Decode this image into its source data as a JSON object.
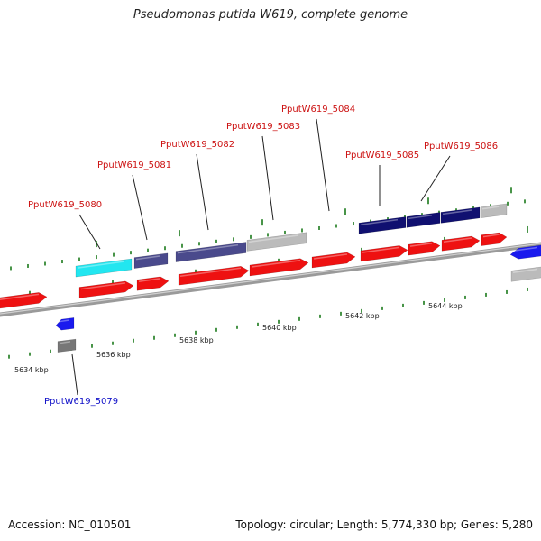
{
  "title": "Pseudomonas putida W619, complete genome",
  "accession": "Accession: NC_010501",
  "topology": "Topology: circular; Length: 5,774,330 bp; Genes: 5,280",
  "tick_labels": [
    "5634 kbp",
    "5636 kbp",
    "5638 kbp",
    "5640 kbp",
    "5642 kbp",
    "5644 kbp"
  ],
  "gene_labels": [
    {
      "text": "PputW619_5079",
      "color": "#1010c8"
    },
    {
      "text": "PputW619_5080",
      "color": "#cc1111"
    },
    {
      "text": "PputW619_5081",
      "color": "#cc1111"
    },
    {
      "text": "PputW619_5082",
      "color": "#cc1111"
    },
    {
      "text": "PputW619_5083",
      "color": "#cc1111"
    },
    {
      "text": "PputW619_5084",
      "color": "#cc1111"
    },
    {
      "text": "PputW619_5085",
      "color": "#cc1111"
    },
    {
      "text": "PputW619_5086",
      "color": "#cc1111"
    }
  ],
  "colors": {
    "cds_forward": "#ee1111",
    "cds_reverse": "#1a1aee",
    "cog_cyan": "#22e6f0",
    "cog_slate": "#4a4a8c",
    "cog_navy": "#101070",
    "cog_gray": "#bbbbbb",
    "backbone": "#8a8a8a",
    "tick": "#1a7a1a"
  }
}
